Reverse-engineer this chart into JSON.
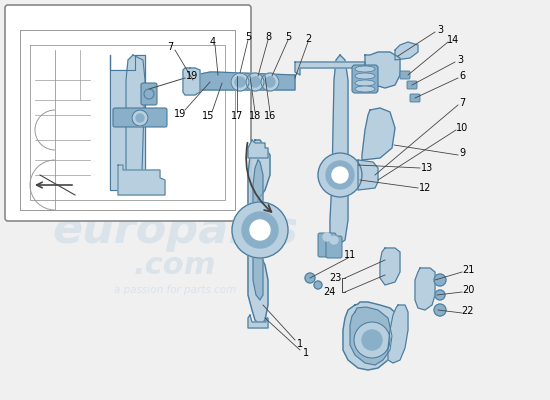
{
  "bg_color": "#f0f0f0",
  "part_blue_light": "#b8cfe0",
  "part_blue_mid": "#8aafc8",
  "part_blue_dark": "#4a7a9b",
  "line_color": "#444444",
  "sketch_color": "#999999",
  "white": "#ffffff",
  "fig_w": 5.5,
  "fig_h": 4.0,
  "dpi": 100,
  "watermark_text1": "europarts",
  "watermark_text2": ".com",
  "watermark_sub": "a passion for parts.com"
}
